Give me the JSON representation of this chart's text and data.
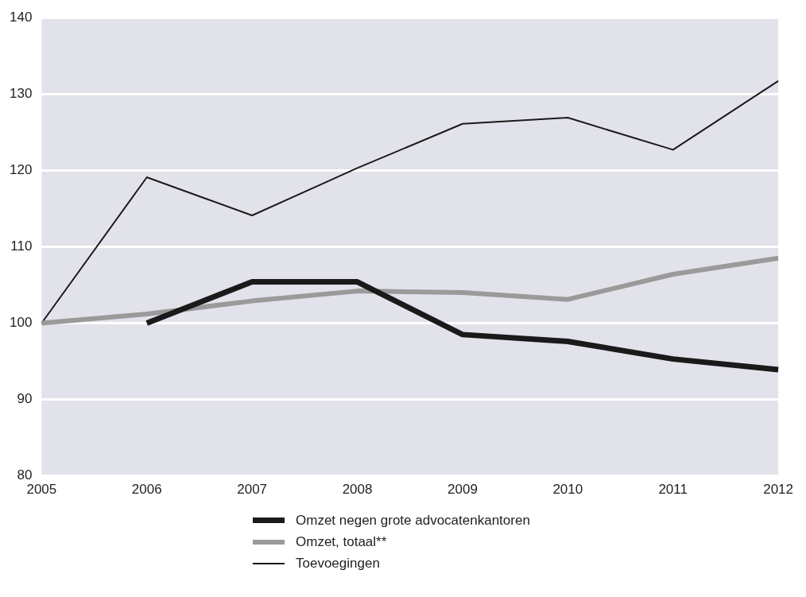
{
  "chart_data": {
    "type": "line",
    "categories": [
      "2005",
      "2006",
      "2007",
      "2008",
      "2009",
      "2010",
      "2011",
      "2012"
    ],
    "series": [
      {
        "name": "Omzet negen grote advocatenkantoren",
        "color": "#1a1a1a",
        "values": [
          null,
          100,
          105.4,
          105.4,
          98.5,
          97.6,
          95.3,
          93.9
        ]
      },
      {
        "name": "Omzet, totaal**",
        "color": "#9a9a9a",
        "values": [
          100,
          101.2,
          102.9,
          104.2,
          104,
          103.1,
          106.4,
          108.5
        ]
      },
      {
        "name": "Toevoegingen",
        "color": "#1a1a1a",
        "values": [
          100,
          119.1,
          114.1,
          120.3,
          126.1,
          126.9,
          122.7,
          131.7
        ]
      }
    ],
    "ylim": [
      80,
      140
    ],
    "yticks": [
      80,
      90,
      100,
      110,
      120,
      130,
      140
    ],
    "grid": "y",
    "legend": "bottom",
    "marker": "none",
    "line_style": "solid"
  }
}
